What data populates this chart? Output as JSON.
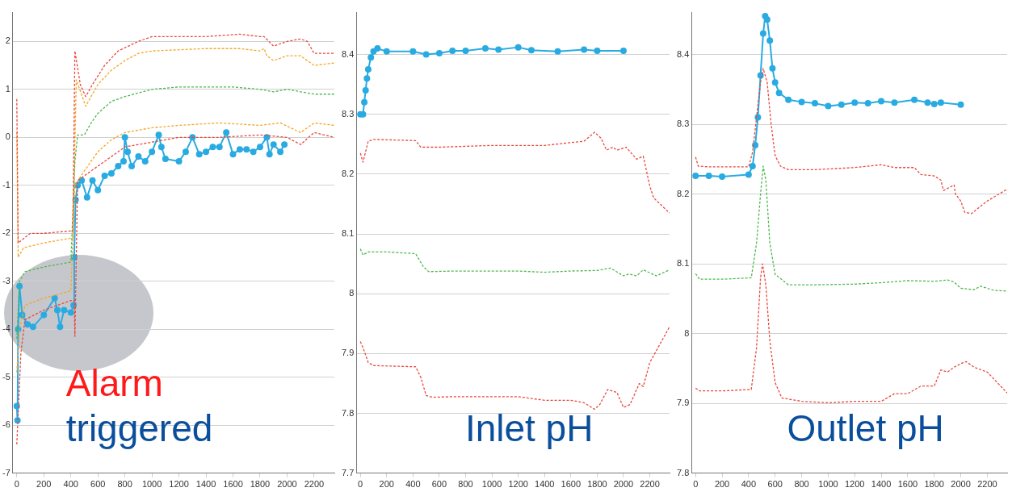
{
  "chart_data": [
    {
      "type": "line",
      "annotations": [
        "Alarm",
        "triggered"
      ],
      "xlim": [
        -30,
        2350
      ],
      "xticks": [
        0,
        200,
        400,
        600,
        800,
        1000,
        1200,
        1400,
        1600,
        1800,
        2000,
        2200
      ],
      "ylim": [
        -7,
        2.6
      ],
      "yticks": [
        -7,
        -6,
        -5,
        -4,
        -3,
        -2,
        -1,
        0,
        1,
        2
      ],
      "grid": "y",
      "legend": false,
      "series": [
        {
          "color": "#e8483f",
          "line_style": "dashed",
          "marker": "none",
          "x": [
            0,
            10,
            100,
            200,
            400,
            415,
            430,
            470,
            510,
            560,
            650,
            750,
            900,
            1000,
            1200,
            1400,
            1650,
            1800,
            1830,
            1900,
            2000,
            2100,
            2150,
            2200,
            2350
          ],
          "values": [
            0.8,
            -2.2,
            -2.0,
            -2.0,
            -1.95,
            -1.95,
            1.8,
            1.1,
            0.85,
            1.1,
            1.5,
            1.8,
            2.0,
            2.1,
            2.1,
            2.1,
            2.15,
            2.1,
            2.1,
            1.9,
            2.0,
            2.05,
            2.0,
            1.75,
            1.75
          ]
        },
        {
          "color": "#f5a623",
          "line_style": "dashed",
          "marker": "none",
          "x": [
            0,
            10,
            50,
            200,
            400,
            415,
            440,
            510,
            600,
            700,
            800,
            900,
            1000,
            1400,
            1650,
            1800,
            1830,
            1850,
            1900,
            2000,
            2100,
            2150,
            2200,
            2350
          ],
          "values": [
            0.1,
            -2.5,
            -2.3,
            -2.2,
            -2.1,
            -2.1,
            1.2,
            0.65,
            1.1,
            1.4,
            1.6,
            1.75,
            1.8,
            1.85,
            1.85,
            1.8,
            1.85,
            1.7,
            1.6,
            1.7,
            1.7,
            1.6,
            1.5,
            1.55
          ]
        },
        {
          "color": "#4cb84c",
          "line_style": "dashed",
          "marker": "none",
          "x": [
            0,
            20,
            60,
            200,
            400,
            430,
            450,
            500,
            550,
            600,
            700,
            800,
            1000,
            1200,
            1600,
            1800,
            1900,
            2000,
            2100,
            2200,
            2350
          ],
          "values": [
            -4.2,
            -3.0,
            -2.8,
            -2.7,
            -2.6,
            -0.5,
            0.05,
            0.05,
            0.3,
            0.5,
            0.75,
            0.85,
            1.0,
            1.05,
            1.05,
            1.0,
            0.95,
            1.0,
            0.95,
            0.9,
            0.9
          ]
        },
        {
          "color": "#f5a623",
          "line_style": "dashed",
          "marker": "none",
          "x": [
            0,
            20,
            60,
            200,
            400,
            430,
            500,
            600,
            700,
            800,
            1000,
            1200,
            1500,
            1800,
            1950,
            2100,
            2200,
            2350
          ],
          "values": [
            -4.9,
            -4.0,
            -3.5,
            -3.35,
            -3.2,
            -1.0,
            -0.7,
            -0.3,
            -0.05,
            0.1,
            0.2,
            0.25,
            0.3,
            0.25,
            0.3,
            0.1,
            0.3,
            0.25
          ]
        },
        {
          "color": "#e8483f",
          "line_style": "dashed",
          "marker": "none",
          "x": [
            0,
            30,
            60,
            200,
            400,
            425,
            430,
            450,
            500,
            600,
            700,
            800,
            1000,
            1200,
            1500,
            1800,
            2000,
            2100,
            2200,
            2350
          ],
          "values": [
            -6.4,
            -4.5,
            -3.8,
            -3.6,
            -3.4,
            -3.4,
            -4.15,
            -0.9,
            -0.8,
            -0.6,
            -0.4,
            -0.2,
            -0.1,
            0.0,
            0.0,
            0.05,
            0.0,
            -0.15,
            0.1,
            0.0
          ]
        },
        {
          "color": "#29abe2",
          "line_style": "solid",
          "marker": "circle",
          "x": [
            0,
            5,
            10,
            20,
            40,
            80,
            120,
            200,
            280,
            300,
            320,
            350,
            400,
            420,
            425,
            435,
            450,
            480,
            520,
            560,
            600,
            650,
            700,
            750,
            790,
            800,
            820,
            850,
            900,
            950,
            1000,
            1050,
            1070,
            1100,
            1200,
            1250,
            1300,
            1350,
            1400,
            1450,
            1500,
            1550,
            1600,
            1650,
            1700,
            1750,
            1800,
            1850,
            1870,
            1900,
            1950,
            1980
          ],
          "values": [
            -5.6,
            -5.9,
            -4.0,
            -3.1,
            -3.7,
            -3.9,
            -3.95,
            -3.7,
            -3.35,
            -3.6,
            -3.95,
            -3.6,
            -3.65,
            -3.5,
            -2.5,
            -1.3,
            -1.0,
            -0.9,
            -1.25,
            -0.9,
            -1.1,
            -0.8,
            -0.75,
            -0.6,
            -0.5,
            0.0,
            -0.3,
            -0.6,
            -0.4,
            -0.5,
            -0.3,
            0.05,
            -0.2,
            -0.45,
            -0.5,
            -0.3,
            0.0,
            -0.35,
            -0.3,
            -0.2,
            -0.2,
            0.1,
            -0.35,
            -0.25,
            -0.25,
            -0.3,
            -0.2,
            0.0,
            -0.35,
            -0.15,
            -0.3,
            -0.15
          ]
        }
      ]
    },
    {
      "type": "line",
      "annotations": [
        "Inlet pH"
      ],
      "xlim": [
        -30,
        2350
      ],
      "xticks": [
        0,
        200,
        400,
        600,
        800,
        1000,
        1200,
        1400,
        1600,
        1800,
        2000,
        2200
      ],
      "ylim": [
        7.7,
        8.47
      ],
      "yticks": [
        7.7,
        7.8,
        7.9,
        8,
        8.1,
        8.2,
        8.3,
        8.4
      ],
      "grid": "y",
      "legend": false,
      "series": [
        {
          "color": "#e8483f",
          "line_style": "dashed",
          "marker": "none",
          "x": [
            0,
            20,
            60,
            100,
            420,
            460,
            600,
            1000,
            1400,
            1700,
            1780,
            1830,
            1870,
            1920,
            1950,
            2020,
            2100,
            2150,
            2170,
            2200,
            2230,
            2350
          ],
          "values": [
            8.235,
            8.22,
            8.255,
            8.258,
            8.256,
            8.245,
            8.245,
            8.248,
            8.248,
            8.255,
            8.27,
            8.26,
            8.24,
            8.245,
            8.24,
            8.245,
            8.225,
            8.23,
            8.21,
            8.18,
            8.16,
            8.135
          ]
        },
        {
          "color": "#4cb84c",
          "line_style": "dashed",
          "marker": "none",
          "x": [
            0,
            20,
            60,
            200,
            420,
            480,
            520,
            700,
            1200,
            1400,
            1600,
            1800,
            1900,
            2000,
            2040,
            2100,
            2150,
            2250,
            2350
          ],
          "values": [
            8.075,
            8.065,
            8.07,
            8.07,
            8.067,
            8.045,
            8.037,
            8.038,
            8.038,
            8.036,
            8.038,
            8.039,
            8.043,
            8.03,
            8.033,
            8.03,
            8.04,
            8.03,
            8.04
          ]
        },
        {
          "color": "#e8483f",
          "line_style": "dashed",
          "marker": "none",
          "x": [
            0,
            20,
            60,
            100,
            420,
            460,
            500,
            550,
            700,
            1200,
            1400,
            1600,
            1700,
            1780,
            1820,
            1880,
            1950,
            2000,
            2050,
            2120,
            2150,
            2200,
            2350
          ],
          "values": [
            7.92,
            7.91,
            7.885,
            7.88,
            7.878,
            7.86,
            7.83,
            7.827,
            7.828,
            7.828,
            7.822,
            7.822,
            7.818,
            7.807,
            7.815,
            7.84,
            7.835,
            7.81,
            7.815,
            7.85,
            7.845,
            7.885,
            7.945
          ]
        },
        {
          "color": "#29abe2",
          "line_style": "solid",
          "marker": "circle",
          "x": [
            0,
            20,
            30,
            40,
            50,
            60,
            80,
            100,
            130,
            200,
            400,
            500,
            600,
            700,
            800,
            950,
            1050,
            1200,
            1300,
            1500,
            1700,
            1800,
            2000
          ],
          "values": [
            8.3,
            8.3,
            8.32,
            8.34,
            8.36,
            8.375,
            8.395,
            8.405,
            8.41,
            8.405,
            8.405,
            8.4,
            8.402,
            8.406,
            8.406,
            8.41,
            8.408,
            8.412,
            8.407,
            8.405,
            8.408,
            8.406,
            8.406
          ]
        }
      ]
    },
    {
      "type": "line",
      "annotations": [
        "Outlet pH"
      ],
      "xlim": [
        -30,
        2350
      ],
      "xticks": [
        0,
        200,
        400,
        600,
        800,
        1000,
        1200,
        1400,
        1600,
        1800,
        2000,
        2200
      ],
      "ylim": [
        7.8,
        8.46
      ],
      "yticks": [
        7.8,
        7.9,
        8,
        8.1,
        8.2,
        8.3,
        8.4
      ],
      "grid": "y",
      "legend": false,
      "series": [
        {
          "color": "#e8483f",
          "line_style": "dashed",
          "marker": "none",
          "x": [
            0,
            20,
            100,
            400,
            430,
            460,
            490,
            510,
            540,
            570,
            600,
            640,
            700,
            900,
            1200,
            1400,
            1500,
            1650,
            1700,
            1800,
            1850,
            1870,
            1950,
            1960,
            2000,
            2030,
            2080,
            2200,
            2350
          ],
          "values": [
            8.253,
            8.24,
            8.239,
            8.239,
            8.26,
            8.31,
            8.36,
            8.38,
            8.36,
            8.3,
            8.255,
            8.24,
            8.235,
            8.235,
            8.238,
            8.242,
            8.238,
            8.238,
            8.228,
            8.226,
            8.22,
            8.205,
            8.213,
            8.2,
            8.19,
            8.174,
            8.172,
            8.19,
            8.207
          ]
        },
        {
          "color": "#4cb84c",
          "line_style": "dashed",
          "marker": "none",
          "x": [
            0,
            30,
            200,
            420,
            460,
            490,
            510,
            530,
            560,
            600,
            700,
            900,
            1200,
            1400,
            1600,
            1800,
            1900,
            1950,
            2000,
            2100,
            2150,
            2250,
            2350
          ],
          "values": [
            8.086,
            8.078,
            8.078,
            8.08,
            8.13,
            8.2,
            8.24,
            8.22,
            8.13,
            8.085,
            8.07,
            8.07,
            8.071,
            8.073,
            8.076,
            8.075,
            8.077,
            8.074,
            8.065,
            8.063,
            8.068,
            8.062,
            8.061
          ]
        },
        {
          "color": "#e8483f",
          "line_style": "dashed",
          "marker": "none",
          "x": [
            0,
            30,
            200,
            420,
            460,
            490,
            505,
            530,
            560,
            600,
            650,
            800,
            1000,
            1200,
            1400,
            1500,
            1600,
            1700,
            1800,
            1850,
            1900,
            1950,
            2000,
            2040,
            2100,
            2200,
            2350
          ],
          "values": [
            7.922,
            7.918,
            7.918,
            7.92,
            7.98,
            8.08,
            8.1,
            8.07,
            7.99,
            7.93,
            7.908,
            7.903,
            7.901,
            7.903,
            7.903,
            7.914,
            7.914,
            7.925,
            7.925,
            7.948,
            7.945,
            7.952,
            7.957,
            7.96,
            7.952,
            7.945,
            7.915
          ]
        },
        {
          "color": "#29abe2",
          "line_style": "solid",
          "marker": "circle",
          "x": [
            0,
            100,
            200,
            400,
            430,
            450,
            470,
            490,
            510,
            525,
            540,
            560,
            580,
            600,
            630,
            700,
            800,
            900,
            1000,
            1100,
            1200,
            1300,
            1400,
            1500,
            1650,
            1750,
            1800,
            1850,
            2000
          ],
          "values": [
            8.226,
            8.226,
            8.225,
            8.228,
            8.24,
            8.27,
            8.31,
            8.37,
            8.43,
            8.455,
            8.45,
            8.42,
            8.38,
            8.36,
            8.345,
            8.335,
            8.332,
            8.33,
            8.326,
            8.328,
            8.331,
            8.33,
            8.333,
            8.331,
            8.335,
            8.331,
            8.329,
            8.331,
            8.328
          ]
        }
      ]
    }
  ]
}
